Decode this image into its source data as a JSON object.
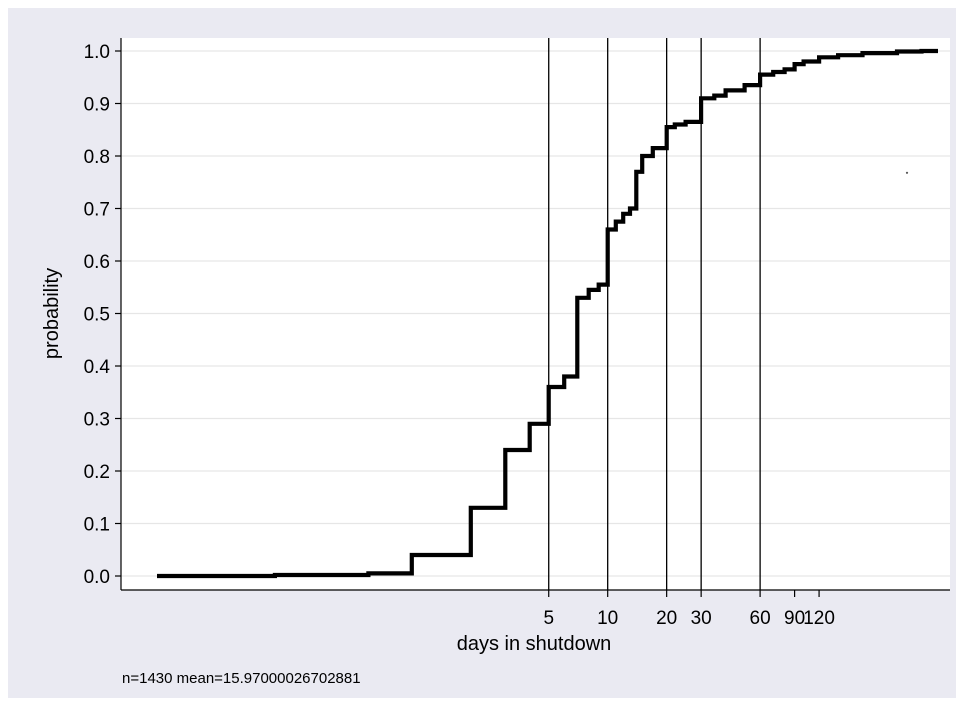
{
  "chart_data": {
    "type": "line",
    "step": true,
    "xlabel": "days in shutdown",
    "ylabel": "probability",
    "note": "n=1430 mean=15.97000026702881",
    "x_scale": "log",
    "xlim": [
      0.04,
      480
    ],
    "ylim": [
      0,
      1
    ],
    "yticks": [
      0.0,
      0.1,
      0.2,
      0.3,
      0.4,
      0.5,
      0.6,
      0.7,
      0.8,
      0.9,
      1.0
    ],
    "ytick_labels": [
      "0.0",
      "0.1",
      "0.2",
      "0.3",
      "0.4",
      "0.5",
      "0.6",
      "0.7",
      "0.8",
      "0.9",
      "1.0"
    ],
    "xticks": [
      5,
      10,
      20,
      30,
      60,
      90,
      120
    ],
    "xtick_labels": [
      "5",
      "10",
      "20",
      "30",
      "60",
      "90",
      "120"
    ],
    "reference_lines_x": [
      5,
      10,
      20,
      30,
      60
    ],
    "grid": true,
    "series": [
      {
        "x": [
          0.05,
          0.2,
          0.6,
          1,
          2,
          3,
          4,
          5,
          6,
          7,
          8,
          9,
          10,
          11,
          12,
          13,
          14,
          15,
          17,
          20,
          22,
          25,
          30,
          35,
          40,
          50,
          60,
          70,
          80,
          90,
          100,
          120,
          150,
          200,
          300,
          400
        ],
        "y": [
          0.0,
          0.002,
          0.005,
          0.04,
          0.13,
          0.24,
          0.29,
          0.36,
          0.38,
          0.53,
          0.545,
          0.555,
          0.66,
          0.675,
          0.69,
          0.7,
          0.77,
          0.8,
          0.815,
          0.855,
          0.86,
          0.865,
          0.91,
          0.915,
          0.925,
          0.935,
          0.955,
          0.96,
          0.965,
          0.975,
          0.98,
          0.988,
          0.992,
          0.996,
          0.999,
          1.0
        ],
        "color": "#000000"
      }
    ]
  }
}
